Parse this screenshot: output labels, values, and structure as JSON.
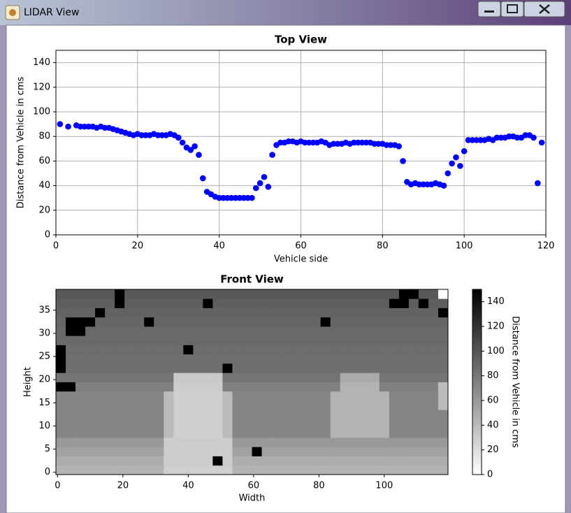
{
  "window": {
    "title": "LIDAR View"
  },
  "chart_data": [
    {
      "type": "scatter",
      "title": "Top View",
      "xlabel": "Vehicle side",
      "ylabel": "Distance from Vehicle in cms",
      "color": "#0000ff",
      "grid": true,
      "xlim": [
        0,
        120
      ],
      "ylim": [
        0,
        150
      ],
      "xticks": [
        0,
        20,
        40,
        60,
        80,
        100,
        120
      ],
      "yticks": [
        0,
        20,
        40,
        60,
        80,
        100,
        120,
        140
      ],
      "x": [
        1,
        3,
        5,
        6,
        7,
        8,
        9,
        10,
        11,
        12,
        13,
        14,
        15,
        16,
        17,
        18,
        19,
        20,
        21,
        22,
        23,
        24,
        25,
        26,
        27,
        28,
        29,
        30,
        31,
        32,
        33,
        34,
        35,
        36,
        37,
        38,
        39,
        40,
        41,
        42,
        43,
        44,
        45,
        46,
        47,
        48,
        49,
        50,
        51,
        52,
        53,
        54,
        55,
        56,
        57,
        58,
        59,
        60,
        61,
        62,
        63,
        64,
        65,
        66,
        67,
        68,
        69,
        70,
        71,
        72,
        73,
        74,
        75,
        76,
        77,
        78,
        79,
        80,
        81,
        82,
        83,
        84,
        85,
        86,
        87,
        88,
        89,
        90,
        91,
        92,
        93,
        94,
        95,
        96,
        97,
        98,
        99,
        100,
        101,
        102,
        103,
        104,
        105,
        106,
        107,
        108,
        109,
        110,
        111,
        112,
        113,
        114,
        115,
        116,
        117,
        118,
        119
      ],
      "values": [
        90,
        88,
        89,
        88,
        88,
        88,
        88,
        87,
        88,
        87,
        87,
        86,
        85,
        84,
        83,
        82,
        81,
        82,
        81,
        81,
        81,
        82,
        81,
        81,
        81,
        82,
        81,
        79,
        75,
        71,
        69,
        72,
        65,
        46,
        35,
        33,
        31,
        30,
        30,
        30,
        30,
        30,
        30,
        30,
        30,
        30,
        38,
        42,
        47,
        39,
        65,
        73,
        75,
        75,
        76,
        76,
        75,
        76,
        75,
        75,
        75,
        75,
        76,
        75,
        73,
        74,
        74,
        74,
        75,
        74,
        75,
        75,
        75,
        75,
        75,
        74,
        74,
        74,
        73,
        73,
        73,
        72,
        60,
        43,
        41,
        42,
        41,
        41,
        41,
        41,
        42,
        41,
        40,
        50,
        58,
        63,
        56,
        68,
        77,
        77,
        77,
        77,
        77,
        78,
        77,
        79,
        79,
        79,
        80,
        80,
        79,
        79,
        81,
        81,
        79,
        42,
        75
      ]
    },
    {
      "type": "heatmap",
      "title": "Front View",
      "xlabel": "Width",
      "ylabel": "Height",
      "colorbar_label": "Distance from Vehicle in cms",
      "colors": [
        "#ffffff",
        "#000000"
      ],
      "clim": [
        0,
        150
      ],
      "cticks": [
        0,
        20,
        40,
        60,
        80,
        100,
        120,
        140
      ],
      "xlim": [
        -0.5,
        119.5
      ],
      "ylim": [
        -0.5,
        39.5
      ],
      "xticks": [
        0,
        20,
        40,
        60,
        80,
        100
      ],
      "yticks": [
        0,
        5,
        10,
        15,
        20,
        25,
        30,
        35
      ],
      "xbins": [
        -0.5,
        2.5,
        5.5,
        8.5,
        11.5,
        14.5,
        17.5,
        20.5,
        23.5,
        26.5,
        29.5,
        32.5,
        35.5,
        38.5,
        41.5,
        44.5,
        47.5,
        50.5,
        53.5,
        56.5,
        59.5,
        62.5,
        65.5,
        68.5,
        71.5,
        74.5,
        77.5,
        80.5,
        83.5,
        86.5,
        89.5,
        92.5,
        95.5,
        98.5,
        101.5,
        104.5,
        107.5,
        110.5,
        113.5,
        116.5,
        119.5
      ],
      "ybins": [
        -0.5,
        1.5,
        3.5,
        5.5,
        7.5,
        9.5,
        11.5,
        13.5,
        15.5,
        17.5,
        19.5,
        21.5,
        23.5,
        25.5,
        27.5,
        29.5,
        31.5,
        33.5,
        35.5,
        37.5,
        39.5
      ],
      "values": [
        [
          45,
          45,
          45,
          45,
          45,
          45,
          45,
          45,
          45,
          45,
          45,
          28,
          28,
          28,
          28,
          28,
          28,
          28,
          45,
          45,
          45,
          45,
          45,
          45,
          45,
          45,
          45,
          45,
          45,
          45,
          45,
          45,
          45,
          45,
          45,
          45,
          45,
          45,
          45,
          45
        ],
        [
          48,
          48,
          48,
          48,
          48,
          48,
          48,
          48,
          48,
          48,
          48,
          30,
          30,
          30,
          30,
          30,
          150,
          30,
          48,
          48,
          48,
          48,
          48,
          48,
          48,
          48,
          48,
          48,
          48,
          48,
          48,
          48,
          48,
          48,
          48,
          48,
          48,
          48,
          48,
          48
        ],
        [
          55,
          55,
          55,
          55,
          55,
          55,
          55,
          55,
          55,
          55,
          55,
          30,
          30,
          30,
          30,
          30,
          30,
          30,
          55,
          55,
          150,
          55,
          55,
          55,
          55,
          55,
          55,
          55,
          55,
          55,
          55,
          55,
          55,
          55,
          55,
          55,
          55,
          55,
          55,
          55
        ],
        [
          60,
          60,
          60,
          60,
          60,
          60,
          60,
          60,
          60,
          60,
          60,
          30,
          30,
          30,
          30,
          30,
          30,
          30,
          60,
          60,
          60,
          60,
          60,
          60,
          60,
          60,
          60,
          60,
          60,
          60,
          60,
          60,
          60,
          60,
          60,
          60,
          60,
          60,
          60,
          60
        ],
        [
          72,
          72,
          72,
          72,
          72,
          72,
          72,
          72,
          72,
          72,
          72,
          40,
          28,
          28,
          28,
          28,
          28,
          40,
          72,
          72,
          72,
          72,
          72,
          72,
          72,
          72,
          72,
          72,
          45,
          45,
          45,
          45,
          45,
          45,
          72,
          72,
          72,
          72,
          72,
          72
        ],
        [
          72,
          72,
          72,
          72,
          72,
          72,
          72,
          72,
          72,
          72,
          72,
          40,
          28,
          28,
          28,
          28,
          28,
          40,
          72,
          72,
          72,
          72,
          72,
          72,
          72,
          72,
          72,
          72,
          45,
          45,
          45,
          45,
          45,
          45,
          72,
          72,
          72,
          72,
          72,
          72
        ],
        [
          72,
          72,
          72,
          72,
          72,
          72,
          72,
          72,
          72,
          72,
          72,
          40,
          28,
          28,
          28,
          28,
          28,
          40,
          72,
          72,
          72,
          72,
          72,
          72,
          72,
          72,
          72,
          72,
          45,
          45,
          45,
          45,
          45,
          45,
          72,
          72,
          72,
          72,
          72,
          72
        ],
        [
          72,
          72,
          72,
          72,
          72,
          72,
          72,
          72,
          72,
          72,
          72,
          40,
          28,
          28,
          28,
          28,
          28,
          40,
          72,
          72,
          72,
          72,
          72,
          72,
          72,
          72,
          72,
          72,
          45,
          45,
          45,
          45,
          45,
          45,
          72,
          72,
          72,
          72,
          72,
          40
        ],
        [
          72,
          72,
          72,
          72,
          72,
          72,
          72,
          72,
          72,
          72,
          72,
          40,
          28,
          28,
          28,
          28,
          28,
          40,
          72,
          72,
          72,
          72,
          72,
          72,
          72,
          72,
          72,
          72,
          45,
          45,
          45,
          45,
          45,
          45,
          72,
          72,
          72,
          72,
          72,
          40
        ],
        [
          150,
          150,
          75,
          75,
          75,
          75,
          75,
          75,
          75,
          75,
          75,
          75,
          30,
          30,
          30,
          30,
          30,
          75,
          75,
          75,
          75,
          75,
          75,
          75,
          75,
          75,
          75,
          75,
          75,
          45,
          45,
          45,
          45,
          75,
          75,
          75,
          75,
          75,
          75,
          40
        ],
        [
          82,
          82,
          82,
          82,
          82,
          82,
          82,
          82,
          82,
          82,
          82,
          82,
          32,
          32,
          32,
          32,
          32,
          82,
          82,
          82,
          82,
          82,
          82,
          82,
          82,
          82,
          82,
          82,
          82,
          50,
          50,
          50,
          50,
          82,
          82,
          82,
          82,
          82,
          82,
          82
        ],
        [
          150,
          85,
          85,
          85,
          85,
          85,
          85,
          85,
          85,
          85,
          85,
          85,
          85,
          85,
          85,
          85,
          85,
          150,
          85,
          85,
          85,
          85,
          85,
          85,
          85,
          85,
          85,
          85,
          85,
          85,
          85,
          85,
          85,
          85,
          85,
          85,
          85,
          85,
          85,
          85
        ],
        [
          150,
          85,
          85,
          85,
          85,
          85,
          85,
          85,
          85,
          85,
          85,
          85,
          85,
          85,
          85,
          85,
          85,
          85,
          85,
          85,
          85,
          85,
          85,
          85,
          85,
          85,
          85,
          85,
          85,
          85,
          85,
          85,
          85,
          85,
          85,
          85,
          85,
          85,
          85,
          85
        ],
        [
          150,
          86,
          86,
          86,
          86,
          86,
          86,
          86,
          86,
          86,
          86,
          86,
          86,
          150,
          86,
          86,
          86,
          86,
          86,
          86,
          86,
          86,
          86,
          86,
          86,
          86,
          86,
          86,
          86,
          86,
          86,
          86,
          86,
          86,
          86,
          86,
          86,
          86,
          86,
          86
        ],
        [
          88,
          88,
          88,
          88,
          88,
          88,
          88,
          88,
          88,
          88,
          88,
          88,
          88,
          88,
          88,
          88,
          88,
          88,
          88,
          88,
          88,
          88,
          88,
          88,
          88,
          88,
          88,
          88,
          88,
          88,
          88,
          88,
          88,
          88,
          88,
          88,
          88,
          88,
          88,
          88
        ],
        [
          88,
          150,
          150,
          88,
          88,
          88,
          88,
          88,
          88,
          88,
          88,
          88,
          88,
          88,
          88,
          88,
          88,
          88,
          88,
          88,
          88,
          88,
          88,
          88,
          88,
          88,
          88,
          88,
          88,
          88,
          88,
          88,
          88,
          88,
          88,
          88,
          88,
          88,
          88,
          88
        ],
        [
          90,
          150,
          150,
          150,
          90,
          90,
          90,
          90,
          90,
          150,
          90,
          90,
          90,
          90,
          90,
          90,
          90,
          90,
          90,
          90,
          90,
          90,
          90,
          90,
          90,
          90,
          90,
          150,
          90,
          90,
          90,
          90,
          90,
          90,
          90,
          90,
          90,
          90,
          90,
          90
        ],
        [
          92,
          92,
          92,
          92,
          150,
          92,
          92,
          92,
          92,
          92,
          92,
          92,
          92,
          92,
          92,
          92,
          92,
          92,
          92,
          92,
          92,
          92,
          92,
          92,
          92,
          92,
          92,
          92,
          92,
          92,
          92,
          92,
          92,
          92,
          92,
          92,
          92,
          92,
          92,
          150
        ],
        [
          95,
          95,
          95,
          95,
          95,
          95,
          150,
          95,
          95,
          95,
          95,
          95,
          95,
          95,
          95,
          150,
          95,
          95,
          95,
          95,
          95,
          95,
          95,
          95,
          95,
          95,
          95,
          95,
          95,
          95,
          95,
          95,
          95,
          95,
          150,
          150,
          95,
          150,
          95,
          95
        ],
        [
          98,
          98,
          98,
          98,
          98,
          98,
          150,
          98,
          98,
          98,
          98,
          98,
          98,
          98,
          98,
          98,
          98,
          98,
          98,
          98,
          98,
          98,
          98,
          98,
          98,
          98,
          98,
          98,
          98,
          98,
          98,
          98,
          98,
          98,
          98,
          150,
          150,
          98,
          98,
          0
        ]
      ]
    }
  ]
}
